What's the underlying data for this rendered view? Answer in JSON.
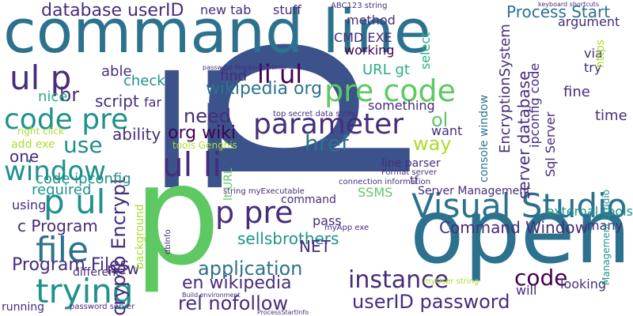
{
  "palette": {
    "dark_purple": "#440154",
    "purple": "#472d7b",
    "indigo": "#3b528b",
    "blue": "#2c728e",
    "teal": "#21918c",
    "green_teal": "#28ae80",
    "green": "#5ec962",
    "lime": "#addc30",
    "yellow": "#fde725"
  },
  "words": [
    "p",
    "li",
    "p",
    "open",
    "command line",
    "pre code",
    "parameter",
    "li ul",
    "ul li",
    "ul p",
    "code pre",
    "window",
    "p ul",
    "file",
    "trying",
    "Visual Studio",
    "p pre",
    "crypto Encrypt",
    "userID password",
    "instance",
    "code",
    "database userID",
    "Process Start",
    "wikipedia org",
    "org wiki",
    "need",
    "href",
    "application",
    "rel nofollow",
    "en wikipedia",
    "server database",
    "EncryptionSystem",
    "console window",
    "ipconfig code",
    "Command Window",
    "Program Files",
    "c Program",
    "sellsbrothers",
    "NET",
    "pass",
    "command",
    "required",
    "using",
    "new",
    "background",
    "code ipconfig",
    "one",
    "use",
    "ability",
    "check",
    "script",
    "br",
    "nice",
    "able",
    "find",
    "lt URL",
    "URL gt",
    "method",
    "working",
    "CMD EXE",
    "select",
    "way",
    "argument",
    "via",
    "try",
    "fine",
    "time",
    "ol",
    "want",
    "something",
    "SSMS",
    "tf",
    "line parser",
    "Sql Server",
    "external tools",
    "many",
    "looking",
    "will",
    "Server Management",
    "connection information",
    "new tab",
    "stuff",
    "ABC123 string",
    "keyboard shortcuts",
    "right click",
    "add exe",
    "far",
    "tools Genghis",
    "Format server",
    "running",
    "password server",
    "different",
    "myApp exe",
    "https",
    "Management Studio",
    "string myExecutable",
    "top secret data string",
    "password ProcessStartInfo",
    "myUser string",
    "dbInfo",
    "Build environment",
    "ProcessStartInfo"
  ]
}
